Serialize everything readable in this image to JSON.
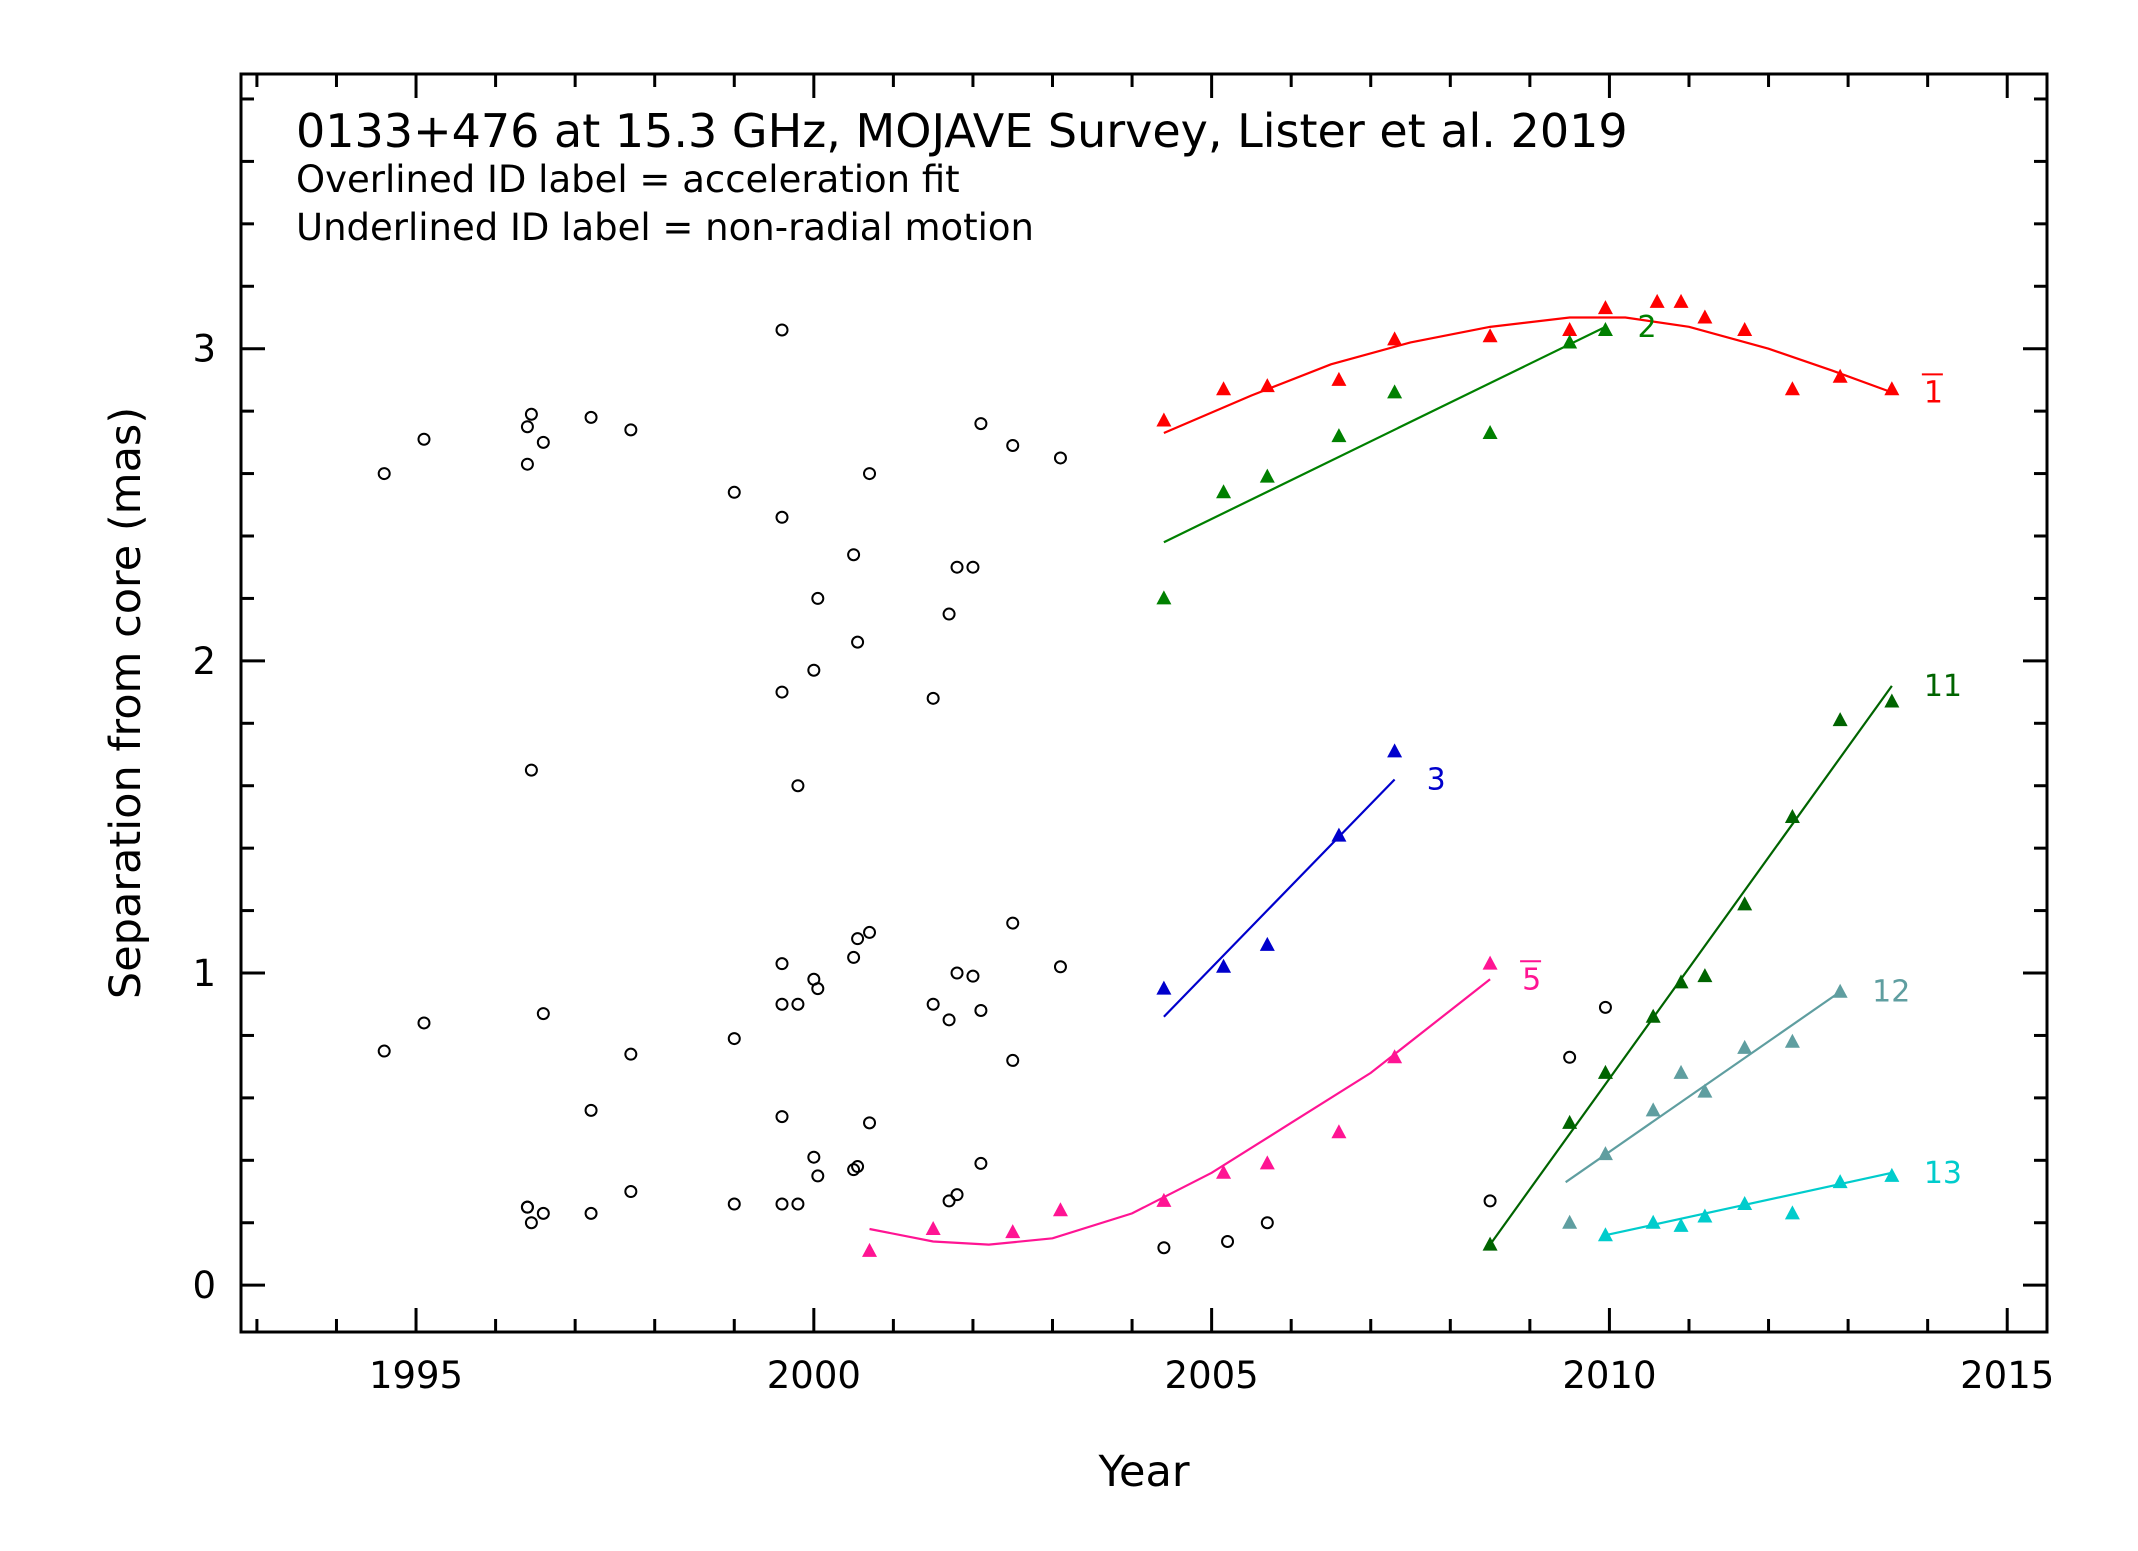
{
  "chart_data": {
    "type": "scatter",
    "title": "0133+476 at 15.3 GHz, MOJAVE Survey, Lister et al. 2019",
    "annotations": [
      "Overlined ID label = acceleration fit",
      "Underlined ID label = non-radial motion"
    ],
    "xlabel": "Year",
    "ylabel": "Separation from core (mas)",
    "xlim": [
      1992.8,
      2015.5
    ],
    "ylim": [
      -0.15,
      3.88
    ],
    "x_ticks": [
      1995,
      2000,
      2005,
      2010,
      2015
    ],
    "y_ticks": [
      0,
      1,
      2,
      3
    ],
    "x_tick_labels": [
      "1995",
      "2000",
      "2005",
      "2010",
      "2015"
    ],
    "y_tick_labels": [
      "0",
      "1",
      "2",
      "3"
    ],
    "grid": false,
    "legend": "none",
    "unassigned": {
      "marker": "open-circle",
      "color": "#000000",
      "points": [
        [
          1994.6,
          2.6
        ],
        [
          1995.1,
          2.71
        ],
        [
          1996.4,
          2.75
        ],
        [
          1996.4,
          2.63
        ],
        [
          1996.45,
          2.79
        ],
        [
          1996.6,
          2.7
        ],
        [
          1997.2,
          2.78
        ],
        [
          1997.7,
          2.74
        ],
        [
          1999.0,
          2.54
        ],
        [
          1999.6,
          3.06
        ],
        [
          1999.6,
          2.46
        ],
        [
          2000.5,
          2.34
        ],
        [
          2000.7,
          2.6
        ],
        [
          2001.8,
          2.3
        ],
        [
          2002.0,
          2.3
        ],
        [
          2002.1,
          2.76
        ],
        [
          2002.5,
          2.69
        ],
        [
          2003.1,
          2.65
        ],
        [
          1999.6,
          1.9
        ],
        [
          2000.0,
          1.97
        ],
        [
          2000.05,
          2.2
        ],
        [
          2000.55,
          2.06
        ],
        [
          2001.5,
          1.88
        ],
        [
          2001.7,
          2.15
        ],
        [
          1996.45,
          1.65
        ],
        [
          1999.8,
          1.6
        ],
        [
          1994.6,
          0.75
        ],
        [
          1995.1,
          0.84
        ],
        [
          1996.6,
          0.87
        ],
        [
          1997.7,
          0.74
        ],
        [
          1999.0,
          0.79
        ],
        [
          1999.6,
          1.03
        ],
        [
          1999.6,
          0.9
        ],
        [
          1999.8,
          0.9
        ],
        [
          2000.0,
          0.98
        ],
        [
          2000.05,
          0.95
        ],
        [
          2000.5,
          1.05
        ],
        [
          2000.55,
          1.11
        ],
        [
          2000.7,
          1.13
        ],
        [
          2001.5,
          0.9
        ],
        [
          2001.7,
          0.85
        ],
        [
          2001.8,
          1.0
        ],
        [
          2002.0,
          0.99
        ],
        [
          2002.1,
          0.88
        ],
        [
          2002.5,
          1.16
        ],
        [
          2002.5,
          0.72
        ],
        [
          2003.1,
          1.02
        ],
        [
          1997.2,
          0.56
        ],
        [
          1999.6,
          0.54
        ],
        [
          2000.7,
          0.52
        ],
        [
          2000.0,
          0.41
        ],
        [
          2000.05,
          0.35
        ],
        [
          2000.5,
          0.37
        ],
        [
          2000.55,
          0.38
        ],
        [
          2002.1,
          0.39
        ],
        [
          1996.4,
          0.25
        ],
        [
          1996.4,
          0.25
        ],
        [
          1996.45,
          0.2
        ],
        [
          1996.6,
          0.23
        ],
        [
          1997.2,
          0.23
        ],
        [
          1997.7,
          0.3
        ],
        [
          1999.0,
          0.26
        ],
        [
          1999.6,
          0.26
        ],
        [
          1999.8,
          0.26
        ],
        [
          2001.7,
          0.27
        ],
        [
          2001.8,
          0.29
        ],
        [
          2004.4,
          0.12
        ],
        [
          2005.2,
          0.14
        ],
        [
          2005.7,
          0.2
        ],
        [
          2008.5,
          0.27
        ],
        [
          2009.5,
          0.73
        ],
        [
          2009.95,
          0.89
        ]
      ]
    },
    "series": [
      {
        "name": "1",
        "overlined": true,
        "color": "#ff0000",
        "marker": "filled-triangle",
        "x": [
          2004.4,
          2005.15,
          2005.7,
          2006.6,
          2007.3,
          2008.5,
          2009.5,
          2009.95,
          2010.6,
          2010.9,
          2011.2,
          2011.7,
          2012.3,
          2012.9,
          2013.55
        ],
        "y": [
          2.77,
          2.87,
          2.88,
          2.9,
          3.03,
          3.04,
          3.06,
          3.13,
          3.15,
          3.15,
          3.1,
          3.06,
          2.87,
          2.91,
          2.87
        ],
        "fit": {
          "type": "quadratic",
          "x": [
            2004.4,
            2005.5,
            2006.5,
            2007.5,
            2008.5,
            2009.5,
            2010.2,
            2011.0,
            2012.0,
            2012.8,
            2013.55
          ],
          "y": [
            2.73,
            2.85,
            2.95,
            3.02,
            3.07,
            3.1,
            3.1,
            3.07,
            3.0,
            2.93,
            2.86
          ]
        }
      },
      {
        "name": "2",
        "overlined": false,
        "color": "#008000",
        "marker": "filled-triangle",
        "x": [
          2004.4,
          2005.15,
          2005.7,
          2006.6,
          2007.3,
          2008.5,
          2009.5,
          2009.95
        ],
        "y": [
          2.2,
          2.54,
          2.59,
          2.72,
          2.86,
          2.73,
          3.02,
          3.06
        ],
        "fit": {
          "type": "linear",
          "x": [
            2004.4,
            2009.95
          ],
          "y": [
            2.38,
            3.07
          ]
        }
      },
      {
        "name": "3",
        "overlined": false,
        "color": "#0000cc",
        "marker": "filled-triangle",
        "x": [
          2004.4,
          2005.15,
          2005.7,
          2006.6,
          2007.3
        ],
        "y": [
          0.95,
          1.02,
          1.09,
          1.44,
          1.71
        ],
        "fit": {
          "type": "linear",
          "x": [
            2004.4,
            2007.3
          ],
          "y": [
            0.86,
            1.62
          ]
        }
      },
      {
        "name": "5",
        "overlined": true,
        "color": "#ff1493",
        "marker": "filled-triangle",
        "x": [
          2000.7,
          2001.5,
          2002.5,
          2003.1,
          2004.4,
          2005.15,
          2005.7,
          2006.6,
          2007.3,
          2008.5
        ],
        "y": [
          0.11,
          0.18,
          0.17,
          0.24,
          0.27,
          0.36,
          0.39,
          0.49,
          0.73,
          1.03
        ],
        "fit": {
          "type": "quadratic",
          "x": [
            2000.7,
            2001.5,
            2002.2,
            2003.0,
            2004.0,
            2005.0,
            2006.0,
            2007.0,
            2008.0,
            2008.5
          ],
          "y": [
            0.18,
            0.14,
            0.13,
            0.15,
            0.23,
            0.36,
            0.52,
            0.68,
            0.88,
            0.98
          ]
        }
      },
      {
        "name": "11",
        "overlined": false,
        "color": "#006400",
        "marker": "filled-triangle",
        "x": [
          2008.5,
          2009.5,
          2009.95,
          2010.55,
          2010.9,
          2011.2,
          2011.7,
          2012.3,
          2012.9,
          2013.55
        ],
        "y": [
          0.13,
          0.52,
          0.68,
          0.86,
          0.97,
          0.99,
          1.22,
          1.5,
          1.81,
          1.87
        ],
        "fit": {
          "type": "linear",
          "x": [
            2008.5,
            2013.55
          ],
          "y": [
            0.13,
            1.92
          ]
        }
      },
      {
        "name": "12",
        "overlined": false,
        "color": "#5f9ea0",
        "marker": "filled-triangle",
        "x": [
          2009.5,
          2009.95,
          2010.55,
          2010.9,
          2011.2,
          2011.7,
          2012.3,
          2012.9
        ],
        "y": [
          0.2,
          0.42,
          0.56,
          0.68,
          0.62,
          0.76,
          0.78,
          0.94
        ],
        "fit": {
          "type": "linear",
          "x": [
            2009.45,
            2012.9
          ],
          "y": [
            0.33,
            0.94
          ]
        }
      },
      {
        "name": "13",
        "overlined": false,
        "color": "#00cccc",
        "marker": "filled-triangle",
        "x": [
          2009.95,
          2010.55,
          2010.9,
          2011.2,
          2011.7,
          2012.3,
          2012.9,
          2013.55
        ],
        "y": [
          0.16,
          0.2,
          0.19,
          0.22,
          0.26,
          0.23,
          0.33,
          0.35
        ],
        "fit": {
          "type": "linear",
          "x": [
            2009.95,
            2013.55
          ],
          "y": [
            0.16,
            0.36
          ]
        }
      }
    ]
  }
}
